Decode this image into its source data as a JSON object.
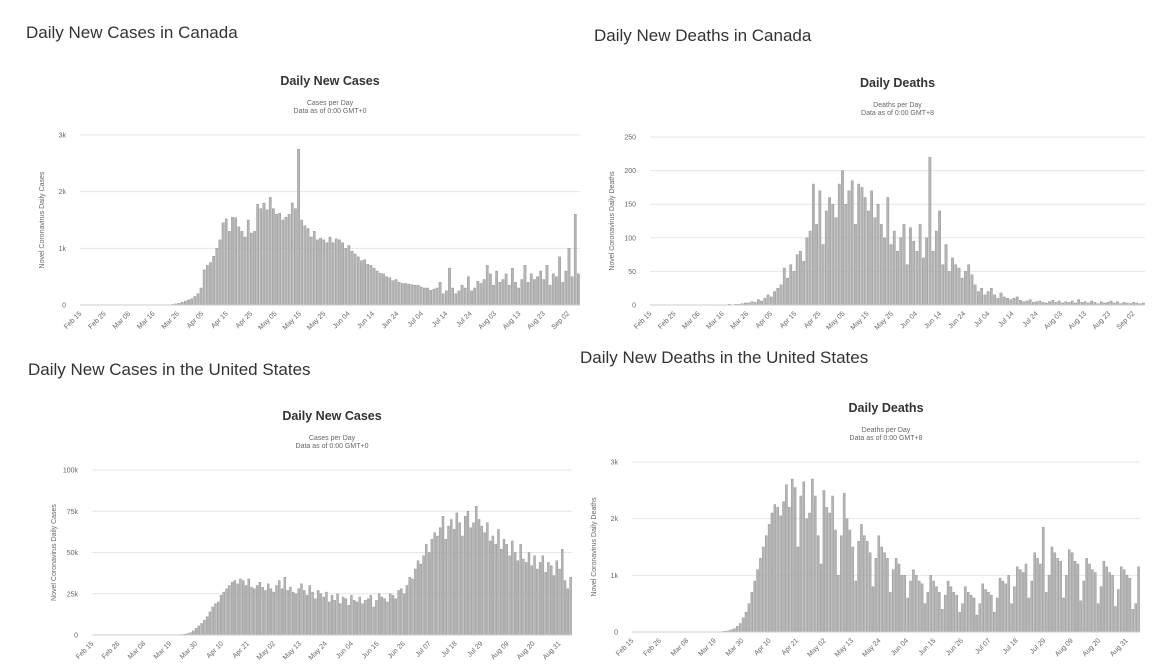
{
  "headings": {
    "ca_cases": "Daily New Cases in Canada",
    "ca_deaths": "Daily New Deaths in Canada",
    "us_cases": "Daily New Cases in the United States",
    "us_deaths": "Daily New Deaths in the United States"
  },
  "colors": {
    "bar": "#b5b5b5",
    "bar_edge": "#8c8c8c",
    "grid": "#e6e6e6"
  },
  "chart_data": [
    {
      "id": "ca_cases",
      "type": "bar",
      "title": "Daily New Cases",
      "subtitle": [
        "Cases per Day",
        "Data as of 0:00 GMT+0"
      ],
      "ylabel": "Novel Coronavirus Daily Cases",
      "ylim": [
        0,
        3000
      ],
      "yticks": [
        0,
        1000,
        2000,
        3000
      ],
      "ytick_labels": [
        "0",
        "1k",
        "2k",
        "3k"
      ],
      "x_start": "Feb 15",
      "xtick_labels": [
        "Feb 15",
        "Feb 25",
        "Mar 06",
        "Mar 16",
        "Mar 26",
        "Apr 05",
        "Apr 15",
        "Apr 25",
        "May 05",
        "May 15",
        "May 25",
        "Jun 04",
        "Jun 14",
        "Jun 24",
        "Jul 04",
        "Jul 14",
        "Jul 24",
        "Aug 03",
        "Aug 13",
        "Aug 23",
        "Sep 02"
      ],
      "grid": true,
      "values": [
        0,
        0,
        0,
        0,
        0,
        0,
        0,
        0,
        0,
        0,
        0,
        0,
        0,
        0,
        0,
        0,
        0,
        0,
        0,
        0,
        0,
        0,
        0,
        0,
        0,
        0,
        0,
        0,
        0,
        10,
        20,
        30,
        50,
        70,
        90,
        110,
        150,
        200,
        300,
        620,
        700,
        750,
        860,
        1000,
        1150,
        1450,
        1520,
        1300,
        1550,
        1540,
        1380,
        1300,
        1200,
        1500,
        1270,
        1300,
        1780,
        1700,
        1800,
        1680,
        1900,
        1700,
        1600,
        1620,
        1500,
        1550,
        1600,
        1800,
        1700,
        2750,
        1500,
        1400,
        1350,
        1200,
        1300,
        1150,
        1180,
        1150,
        1100,
        1200,
        1100,
        1170,
        1150,
        1100,
        1000,
        1050,
        950,
        900,
        850,
        780,
        800,
        720,
        700,
        650,
        600,
        560,
        550,
        500,
        480,
        430,
        450,
        400,
        380,
        380,
        370,
        360,
        350,
        350,
        320,
        300,
        300,
        260,
        280,
        300,
        400,
        200,
        250,
        650,
        300,
        200,
        250,
        350,
        300,
        500,
        250,
        300,
        420,
        380,
        450,
        700,
        550,
        350,
        600,
        400,
        450,
        550,
        350,
        650,
        400,
        300,
        450,
        700,
        400,
        550,
        450,
        500,
        600,
        450,
        700,
        350,
        550,
        500,
        850,
        400,
        600,
        1000,
        500,
        1600,
        550
      ]
    },
    {
      "id": "ca_deaths",
      "type": "bar",
      "title": "Daily Deaths",
      "subtitle": [
        "Deaths per Day",
        "Data as of 0:00 GMT+8"
      ],
      "ylabel": "Novel Coronavirus Daily Deaths",
      "ylim": [
        0,
        250
      ],
      "yticks": [
        0,
        50,
        100,
        150,
        200,
        250
      ],
      "ytick_labels": [
        "0",
        "50",
        "100",
        "150",
        "200",
        "250"
      ],
      "x_start": "Feb 15",
      "xtick_labels": [
        "Feb 15",
        "Feb 25",
        "Mar 06",
        "Mar 16",
        "Mar 26",
        "Apr 05",
        "Apr 15",
        "Apr 25",
        "May 05",
        "May 15",
        "May 25",
        "Jun 04",
        "Jun 14",
        "Jun 24",
        "Jul 04",
        "Jul 14",
        "Jul 24",
        "Aug 03",
        "Aug 13",
        "Aug 23",
        "Sep 02"
      ],
      "grid": true,
      "values": [
        0,
        0,
        0,
        0,
        0,
        0,
        0,
        0,
        0,
        0,
        0,
        0,
        0,
        0,
        0,
        0,
        0,
        0,
        0,
        0,
        0,
        0,
        0,
        0,
        1,
        0,
        1,
        1,
        2,
        3,
        3,
        5,
        4,
        8,
        6,
        10,
        15,
        12,
        20,
        25,
        30,
        55,
        40,
        60,
        50,
        75,
        80,
        65,
        100,
        110,
        180,
        120,
        170,
        90,
        140,
        160,
        150,
        130,
        180,
        200,
        150,
        170,
        185,
        120,
        180,
        175,
        160,
        140,
        170,
        130,
        150,
        120,
        100,
        160,
        90,
        110,
        80,
        100,
        120,
        60,
        115,
        95,
        80,
        120,
        70,
        100,
        220,
        80,
        110,
        140,
        60,
        90,
        50,
        70,
        60,
        55,
        40,
        50,
        60,
        45,
        30,
        20,
        25,
        15,
        20,
        25,
        15,
        10,
        18,
        12,
        10,
        8,
        10,
        12,
        7,
        5,
        6,
        8,
        4,
        5,
        6,
        4,
        3,
        5,
        7,
        4,
        6,
        3,
        5,
        4,
        6,
        3,
        8,
        4,
        5,
        3,
        6,
        4,
        2,
        5,
        3,
        4,
        6,
        3,
        5,
        2,
        4,
        3,
        2,
        4,
        3,
        2,
        3
      ]
    },
    {
      "id": "us_cases",
      "type": "bar",
      "title": "Daily New Cases",
      "subtitle": [
        "Cases per Day",
        "Data as of 0:00 GMT+0"
      ],
      "ylabel": "Novel Coronavirus Daily Cases",
      "ylim": [
        0,
        100000
      ],
      "yticks": [
        0,
        25000,
        50000,
        75000,
        100000
      ],
      "ytick_labels": [
        "0",
        "25k",
        "50k",
        "75k",
        "100k"
      ],
      "x_start": "Feb 15",
      "xtick_labels": [
        "Feb 15",
        "Feb 26",
        "Mar 08",
        "Mar 19",
        "Mar 30",
        "Apr 10",
        "Apr 21",
        "May 02",
        "May 13",
        "May 24",
        "Jun 04",
        "Jun 15",
        "Jun 26",
        "Jul 07",
        "Jul 18",
        "Jul 29",
        "Aug 09",
        "Aug 20",
        "Aug 31"
      ],
      "grid": true,
      "values": [
        0,
        0,
        0,
        0,
        0,
        0,
        0,
        0,
        0,
        0,
        0,
        0,
        0,
        0,
        0,
        0,
        0,
        0,
        0,
        0,
        0,
        0,
        0,
        0,
        0,
        0,
        0,
        0,
        0,
        0,
        100,
        200,
        300,
        500,
        900,
        1500,
        2500,
        4000,
        5500,
        7000,
        9000,
        11000,
        14000,
        17000,
        19000,
        20000,
        24000,
        26000,
        28000,
        30000,
        32000,
        33000,
        31000,
        34000,
        33000,
        30000,
        34000,
        29000,
        28000,
        30000,
        32000,
        29000,
        27000,
        31000,
        28000,
        26000,
        30000,
        33000,
        28000,
        35000,
        27000,
        29000,
        26000,
        25000,
        28000,
        31000,
        27000,
        24000,
        30000,
        26000,
        22000,
        27000,
        25000,
        23000,
        26000,
        20000,
        24000,
        21000,
        25000,
        19000,
        23000,
        22000,
        18000,
        24000,
        21000,
        20000,
        23000,
        19000,
        21000,
        22000,
        24000,
        17000,
        21000,
        25000,
        23000,
        22000,
        20000,
        25000,
        24000,
        22000,
        27000,
        28000,
        25000,
        30000,
        35000,
        34000,
        40000,
        45000,
        43000,
        48000,
        55000,
        50000,
        58000,
        62000,
        60000,
        65000,
        72000,
        58000,
        66000,
        70000,
        64000,
        74000,
        68000,
        60000,
        72000,
        75000,
        65000,
        68000,
        78000,
        70000,
        66000,
        62000,
        68000,
        57000,
        60000,
        55000,
        64000,
        52000,
        58000,
        55000,
        48000,
        57000,
        50000,
        45000,
        55000,
        46000,
        44000,
        50000,
        42000,
        48000,
        40000,
        44000,
        48000,
        38000,
        44000,
        42000,
        36000,
        45000,
        40000,
        52000,
        33000,
        28000,
        35000
      ]
    },
    {
      "id": "us_deaths",
      "type": "bar",
      "title": "Daily Deaths",
      "subtitle": [
        "Deaths per Day",
        "Data as of 0:00 GMT+8"
      ],
      "ylabel": "Novel Coronavirus Daily Deaths",
      "ylim": [
        0,
        3000
      ],
      "yticks": [
        0,
        1000,
        2000,
        3000
      ],
      "ytick_labels": [
        "0",
        "1k",
        "2k",
        "3k"
      ],
      "x_start": "Feb 15",
      "xtick_labels": [
        "Feb 15",
        "Feb 26",
        "Mar 08",
        "Mar 19",
        "Mar 30",
        "Apr 10",
        "Apr 21",
        "May 02",
        "May 13",
        "May 24",
        "Jun 04",
        "Jun 15",
        "Jun 26",
        "Jul 07",
        "Jul 18",
        "Jul 29",
        "Aug 09",
        "Aug 20",
        "Aug 31"
      ],
      "grid": true,
      "values": [
        0,
        0,
        0,
        0,
        0,
        0,
        0,
        0,
        0,
        0,
        0,
        0,
        0,
        0,
        0,
        0,
        0,
        0,
        0,
        0,
        0,
        0,
        0,
        0,
        0,
        0,
        0,
        0,
        0,
        0,
        5,
        10,
        15,
        25,
        40,
        60,
        100,
        150,
        250,
        350,
        500,
        700,
        900,
        1100,
        1300,
        1500,
        1700,
        1900,
        2100,
        2250,
        2200,
        2050,
        2300,
        2600,
        2200,
        2700,
        2550,
        1500,
        2400,
        2650,
        2000,
        2100,
        2700,
        2400,
        1700,
        1200,
        2500,
        2200,
        2100,
        2400,
        1800,
        1000,
        1700,
        2450,
        2000,
        1800,
        1500,
        900,
        1600,
        1900,
        1700,
        1600,
        1400,
        800,
        1300,
        1700,
        1500,
        1400,
        1300,
        700,
        1100,
        1300,
        1200,
        1000,
        1000,
        600,
        900,
        1100,
        1000,
        900,
        850,
        500,
        700,
        1000,
        900,
        800,
        700,
        400,
        650,
        900,
        800,
        700,
        650,
        350,
        500,
        800,
        700,
        650,
        600,
        300,
        500,
        850,
        750,
        700,
        650,
        350,
        600,
        950,
        900,
        850,
        1000,
        500,
        800,
        1150,
        1100,
        1050,
        1200,
        600,
        900,
        1400,
        1300,
        1200,
        1850,
        700,
        1000,
        1500,
        1400,
        1300,
        1250,
        600,
        1000,
        1450,
        1400,
        1250,
        1200,
        550,
        900,
        1300,
        1200,
        1100,
        1050,
        500,
        800,
        1250,
        1150,
        1050,
        1000,
        450,
        750,
        1150,
        1100,
        1000,
        950,
        400,
        500,
        1150
      ]
    }
  ]
}
